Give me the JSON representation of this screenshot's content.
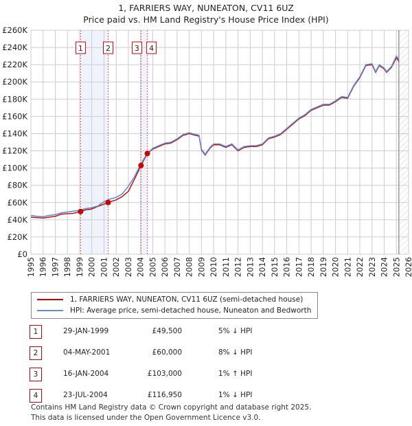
{
  "title": "1, FARRIERS WAY, NUNEATON, CV11 6UZ",
  "subtitle": "Price paid vs. HM Land Registry's House Price Index (HPI)",
  "chart_data": {
    "type": "line",
    "xlim": [
      1995,
      2026
    ],
    "ylim": [
      0,
      260000
    ],
    "x_ticks": [
      "1995",
      "1996",
      "1997",
      "1998",
      "1999",
      "2000",
      "2001",
      "2002",
      "2003",
      "2004",
      "2005",
      "2006",
      "2007",
      "2008",
      "2009",
      "2010",
      "2011",
      "2012",
      "2013",
      "2014",
      "2015",
      "2016",
      "2017",
      "2018",
      "2019",
      "2020",
      "2021",
      "2022",
      "2023",
      "2024",
      "2025",
      "2026"
    ],
    "y_ticks": [
      "£0",
      "£20K",
      "£40K",
      "£60K",
      "£80K",
      "£100K",
      "£120K",
      "£140K",
      "£160K",
      "£180K",
      "£200K",
      "£220K",
      "£240K",
      "£260K"
    ],
    "series": [
      {
        "name": "HPI: Average price, semi-detached house, Nuneaton and Bedworth",
        "color": "#5b8fd6",
        "x": [
          1995,
          1995.5,
          1996,
          1996.5,
          1997,
          1997.5,
          1998,
          1998.5,
          1999,
          1999.5,
          2000,
          2000.5,
          2001,
          2001.5,
          2002,
          2002.5,
          2003,
          2003.5,
          2004,
          2004.5,
          2005,
          2005.5,
          2006,
          2006.5,
          2007,
          2007.5,
          2008,
          2008.5,
          2008.8,
          2009.0,
          2009.3,
          2009.7,
          2010,
          2010.5,
          2011,
          2011.5,
          2012,
          2012.5,
          2013,
          2013.5,
          2014,
          2014.5,
          2015,
          2015.5,
          2016,
          2016.5,
          2017,
          2017.5,
          2018,
          2018.5,
          2019,
          2019.5,
          2020,
          2020.5,
          2021,
          2021.5,
          2022,
          2022.5,
          2023,
          2023.3,
          2023.6,
          2024,
          2024.2,
          2024.6,
          2025,
          2025.2
        ],
        "y": [
          45000,
          44000,
          43500,
          45000,
          46000,
          48000,
          49000,
          50000,
          51000,
          53000,
          54000,
          56000,
          61000,
          64000,
          66000,
          70000,
          79000,
          90000,
          104000,
          116000,
          123000,
          126000,
          129000,
          130000,
          134000,
          139000,
          141000,
          139000,
          138000,
          122000,
          116000,
          124000,
          128000,
          128000,
          125000,
          128000,
          121000,
          125000,
          126000,
          126000,
          128000,
          135000,
          137000,
          140000,
          146000,
          152000,
          158000,
          162000,
          168000,
          171000,
          174000,
          174000,
          178000,
          183000,
          182000,
          196000,
          206000,
          220000,
          221000,
          212000,
          220000,
          216000,
          212000,
          218000,
          230000,
          226000
        ]
      },
      {
        "name": "1, FARRIERS WAY, NUNEATON, CV11 6UZ (semi-detached house)",
        "color": "#cc0000",
        "x": [
          1995,
          1995.5,
          1996,
          1996.5,
          1997,
          1997.5,
          1998,
          1998.5,
          1999.08,
          1999.5,
          2000,
          2000.5,
          2001.34,
          2001.5,
          2002,
          2002.5,
          2003,
          2003.5,
          2004.04,
          2004.56,
          2005,
          2005.5,
          2006,
          2006.5,
          2007,
          2007.5,
          2008,
          2008.5,
          2008.8,
          2009.0,
          2009.3,
          2009.7,
          2010,
          2010.5,
          2011,
          2011.5,
          2012,
          2012.5,
          2013,
          2013.5,
          2014,
          2014.5,
          2015,
          2015.5,
          2016,
          2016.5,
          2017,
          2017.5,
          2018,
          2018.5,
          2019,
          2019.5,
          2020,
          2020.5,
          2021,
          2021.5,
          2022,
          2022.5,
          2023,
          2023.3,
          2023.6,
          2024,
          2024.2,
          2024.6,
          2025,
          2025.2
        ],
        "y": [
          43000,
          42500,
          42000,
          43000,
          44000,
          46500,
          47000,
          47500,
          49500,
          51500,
          52500,
          55500,
          60000,
          61000,
          63000,
          67000,
          73000,
          87000,
          103000,
          116950,
          122000,
          125000,
          128000,
          129000,
          133000,
          138000,
          140000,
          138000,
          137000,
          121000,
          115000,
          123000,
          127000,
          127000,
          124000,
          127000,
          120000,
          124000,
          125000,
          125000,
          127000,
          134000,
          136000,
          139000,
          145000,
          151000,
          157000,
          161000,
          167000,
          170000,
          173000,
          173000,
          177000,
          182000,
          181000,
          195000,
          205000,
          219000,
          220000,
          211000,
          219000,
          215000,
          211000,
          217000,
          228000,
          224000
        ]
      }
    ],
    "sales": [
      {
        "label": "1",
        "x": 1999.08,
        "y": 49500
      },
      {
        "label": "2",
        "x": 2001.34,
        "y": 60000
      },
      {
        "label": "3",
        "x": 2004.04,
        "y": 103000
      },
      {
        "label": "4",
        "x": 2004.56,
        "y": 116950
      }
    ],
    "forecast_start": 2025.2
  },
  "legend": {
    "items": [
      "1, FARRIERS WAY, NUNEATON, CV11 6UZ (semi-detached house)",
      "HPI: Average price, semi-detached house, Nuneaton and Bedworth"
    ]
  },
  "table": [
    {
      "n": "1",
      "date": "29-JAN-1999",
      "price": "£49,500",
      "hpi": "5% ↓ HPI"
    },
    {
      "n": "2",
      "date": "04-MAY-2001",
      "price": "£60,000",
      "hpi": "8% ↓ HPI"
    },
    {
      "n": "3",
      "date": "16-JAN-2004",
      "price": "£103,000",
      "hpi": "1% ↑ HPI"
    },
    {
      "n": "4",
      "date": "23-JUL-2004",
      "price": "£116,950",
      "hpi": "1% ↓ HPI"
    }
  ],
  "footer": [
    "Contains HM Land Registry data © Crown copyright and database right 2025.",
    "This data is licensed under the Open Government Licence v3.0."
  ]
}
